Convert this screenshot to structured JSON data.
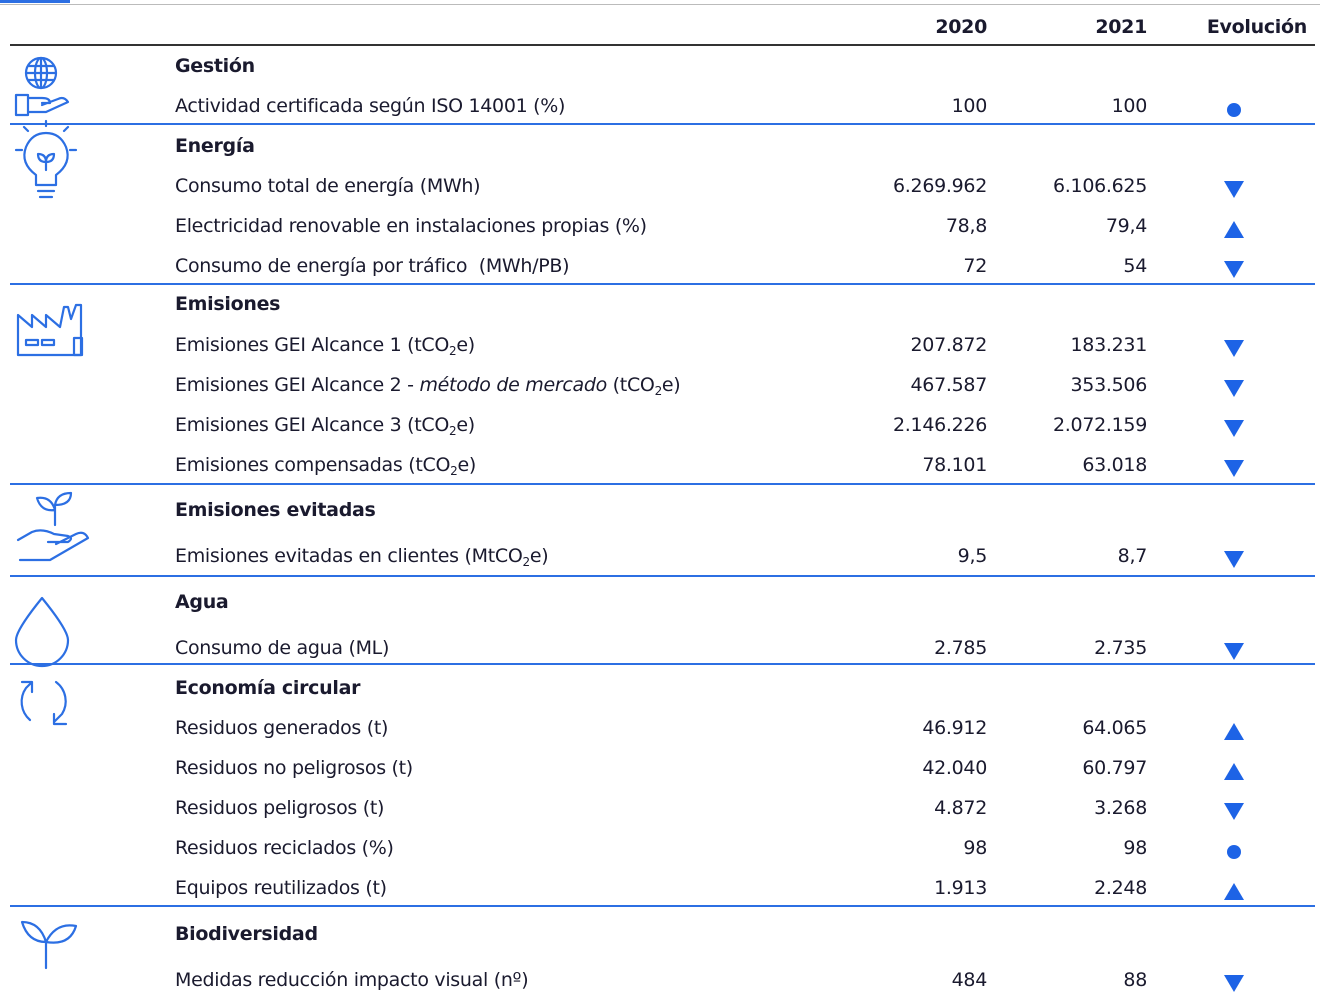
{
  "header": {
    "col_2020": "2020",
    "col_2021": "2021",
    "evolucion": "Evolución"
  },
  "sections": [
    {
      "title": "Gestión",
      "rows": [
        {
          "label": [
            "Actividad certificada según ISO 14001 (%)"
          ],
          "v2020": "100",
          "v2021": "100",
          "trend": "equal"
        }
      ]
    },
    {
      "title": "Energía",
      "rows": [
        {
          "label": [
            "Consumo total de energía (MWh)"
          ],
          "v2020": "6.269.962",
          "v2021": "6.106.625",
          "trend": "down"
        },
        {
          "label": [
            "Electricidad renovable en instalaciones propias (%)"
          ],
          "v2020": "78,8",
          "v2021": "79,4",
          "trend": "up"
        },
        {
          "label": [
            "Consumo de energía por tráfico  (MWh/PB)"
          ],
          "v2020": "72",
          "v2021": "54",
          "trend": "down"
        }
      ]
    },
    {
      "title": "Emisiones",
      "rows": [
        {
          "label": [
            "Emisiones GEI Alcance 1 (tCO",
            {
              "sub": "2"
            },
            "e)"
          ],
          "v2020": "207.872",
          "v2021": "183.231",
          "trend": "down"
        },
        {
          "label": [
            "Emisiones GEI Alcance 2 - ",
            {
              "em": "método de mercado"
            },
            " (tCO",
            {
              "sub": "2"
            },
            "e)"
          ],
          "v2020": "467.587",
          "v2021": "353.506",
          "trend": "down"
        },
        {
          "label": [
            "Emisiones GEI Alcance 3 (tCO",
            {
              "sub": "2"
            },
            "e)"
          ],
          "v2020": "2.146.226",
          "v2021": "2.072.159",
          "trend": "down"
        },
        {
          "label": [
            "Emisiones compensadas (tCO",
            {
              "sub": "2"
            },
            "e)"
          ],
          "v2020": "78.101",
          "v2021": "63.018",
          "trend": "down"
        }
      ]
    },
    {
      "title": "Emisiones evitadas",
      "rows": [
        {
          "label": [
            "Emisiones evitadas en clientes (MtCO",
            {
              "sub": "2"
            },
            "e)"
          ],
          "v2020": "9,5",
          "v2021": "8,7",
          "trend": "down"
        }
      ]
    },
    {
      "title": "Agua",
      "rows": [
        {
          "label": [
            "Consumo de agua (ML)"
          ],
          "v2020": "2.785",
          "v2021": "2.735",
          "trend": "down"
        }
      ]
    },
    {
      "title": "Economía circular",
      "rows": [
        {
          "label": [
            "Residuos generados (t)"
          ],
          "v2020": "46.912",
          "v2021": "64.065",
          "trend": "up"
        },
        {
          "label": [
            "Residuos no peligrosos (t)"
          ],
          "v2020": "42.040",
          "v2021": "60.797",
          "trend": "up"
        },
        {
          "label": [
            "Residuos peligrosos (t)"
          ],
          "v2020": "4.872",
          "v2021": "3.268",
          "trend": "down"
        },
        {
          "label": [
            "Residuos reciclados (%)"
          ],
          "v2020": "98",
          "v2021": "98",
          "trend": "equal"
        },
        {
          "label": [
            "Equipos reutilizados (t)"
          ],
          "v2020": "1.913",
          "v2021": "2.248",
          "trend": "up"
        }
      ]
    },
    {
      "title": "Biodiversidad",
      "rows": [
        {
          "label": [
            "Medidas reducción impacto visual (nº)"
          ],
          "v2020": "484",
          "v2021": "88",
          "trend": "down"
        }
      ]
    }
  ]
}
